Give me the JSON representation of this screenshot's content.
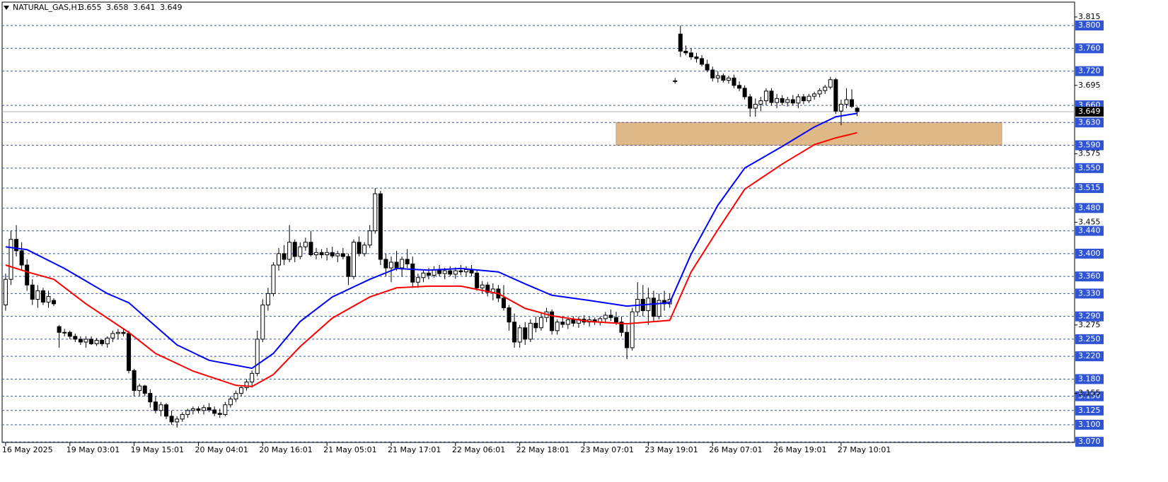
{
  "chart_data": {
    "type": "candlestick",
    "symbol": "NATURAL_GAS,H1",
    "quote": [
      3.655,
      3.658,
      3.641,
      3.649
    ],
    "ylim": [
      3.069,
      3.841
    ],
    "xlim": [
      -0.65,
      199.6
    ],
    "yticks": [
      {
        "value": 3.815,
        "label": "3.815"
      },
      {
        "value": 3.695,
        "label": "3.695"
      },
      {
        "value": 3.575,
        "label": "3.575"
      },
      {
        "value": 3.455,
        "label": "3.455"
      },
      {
        "value": 3.275,
        "label": "3.275"
      },
      {
        "value": 3.155,
        "label": "3.155"
      }
    ],
    "levels": [
      {
        "value": 3.8,
        "label": "3.800"
      },
      {
        "value": 3.76,
        "label": "3.760"
      },
      {
        "value": 3.72,
        "label": "3.720"
      },
      {
        "value": 3.66,
        "label": "3.660"
      },
      {
        "value": 3.63,
        "label": "3.630"
      },
      {
        "value": 3.59,
        "label": "3.590"
      },
      {
        "value": 3.55,
        "label": "3.550"
      },
      {
        "value": 3.515,
        "label": "3.515"
      },
      {
        "value": 3.48,
        "label": "3.480"
      },
      {
        "value": 3.44,
        "label": "3.440"
      },
      {
        "value": 3.4,
        "label": "3.400"
      },
      {
        "value": 3.36,
        "label": "3.360"
      },
      {
        "value": 3.33,
        "label": "3.330"
      },
      {
        "value": 3.29,
        "label": "3.290"
      },
      {
        "value": 3.25,
        "label": "3.250"
      },
      {
        "value": 3.22,
        "label": "3.220"
      },
      {
        "value": 3.18,
        "label": "3.180"
      },
      {
        "value": 3.15,
        "label": "3.150"
      },
      {
        "value": 3.125,
        "label": "3.125"
      },
      {
        "value": 3.1,
        "label": "3.100"
      },
      {
        "value": 3.07,
        "label": "3.070"
      }
    ],
    "level_color": "#2f55d4",
    "current_price": 3.649,
    "xticks": [
      {
        "value": 0,
        "label": "16 May 2025"
      },
      {
        "value": 12,
        "label": "19 May 03:01"
      },
      {
        "value": 24,
        "label": "19 May 15:01"
      },
      {
        "value": 36,
        "label": "20 May 04:01"
      },
      {
        "value": 48,
        "label": "20 May 16:01"
      },
      {
        "value": 60,
        "label": "21 May 05:01"
      },
      {
        "value": 72,
        "label": "21 May 17:01"
      },
      {
        "value": 84,
        "label": "22 May 06:01"
      },
      {
        "value": 96,
        "label": "22 May 18:01"
      },
      {
        "value": 108,
        "label": "23 May 07:01"
      },
      {
        "value": 120,
        "label": "23 May 19:01"
      },
      {
        "value": 132,
        "label": "26 May 07:01"
      },
      {
        "value": 144,
        "label": "26 May 19:01"
      },
      {
        "value": 156,
        "label": "27 May 10:01"
      }
    ],
    "zone": {
      "x": [
        114,
        186
      ],
      "y": [
        3.59,
        3.63
      ],
      "color": "#deb887"
    },
    "series": [
      {
        "color": "#0000ff",
        "x": [
          0,
          4,
          11,
          19,
          23,
          27,
          32,
          38,
          46,
          50,
          55,
          61,
          68,
          73,
          79,
          85,
          92,
          97,
          102,
          109,
          116,
          124,
          128,
          133,
          138,
          145,
          151,
          155,
          159
        ],
        "values": [
          3.412,
          3.407,
          3.374,
          3.33,
          3.314,
          3.281,
          3.24,
          3.213,
          3.199,
          3.225,
          3.281,
          3.324,
          3.355,
          3.374,
          3.371,
          3.374,
          3.368,
          3.347,
          3.327,
          3.318,
          3.308,
          3.314,
          3.399,
          3.485,
          3.55,
          3.588,
          3.622,
          3.64,
          3.646
        ]
      },
      {
        "color": "#ff0000",
        "x": [
          0,
          4,
          9,
          15,
          23,
          28,
          35,
          43,
          46,
          50,
          55,
          61,
          68,
          73,
          79,
          85,
          92,
          97,
          102,
          109,
          116,
          124,
          128,
          133,
          138,
          145,
          151,
          155,
          159
        ],
        "values": [
          3.38,
          3.368,
          3.355,
          3.312,
          3.262,
          3.225,
          3.194,
          3.169,
          3.167,
          3.188,
          3.237,
          3.287,
          3.324,
          3.34,
          3.343,
          3.343,
          3.33,
          3.304,
          3.291,
          3.281,
          3.277,
          3.283,
          3.368,
          3.442,
          3.513,
          3.557,
          3.591,
          3.603,
          3.612
        ]
      }
    ],
    "ohlc": [
      [
        3.31,
        3.365,
        3.3,
        3.355
      ],
      [
        3.355,
        3.44,
        3.345,
        3.425
      ],
      [
        3.425,
        3.45,
        3.395,
        3.405
      ],
      [
        3.405,
        3.42,
        3.37,
        3.38
      ],
      [
        3.38,
        3.39,
        3.335,
        3.345
      ],
      [
        3.345,
        3.355,
        3.31,
        3.32
      ],
      [
        3.32,
        3.345,
        3.305,
        3.335
      ],
      [
        3.335,
        3.34,
        3.31,
        3.315
      ],
      [
        3.315,
        3.335,
        3.305,
        3.325
      ],
      [
        3.318,
        3.322,
        3.308,
        3.312
      ],
      [
        3.272,
        3.275,
        3.235,
        3.262
      ],
      [
        3.262,
        3.268,
        3.255,
        3.262
      ],
      [
        3.262,
        3.265,
        3.25,
        3.255
      ],
      [
        3.255,
        3.26,
        3.245,
        3.25
      ],
      [
        3.25,
        3.255,
        3.24,
        3.245
      ],
      [
        3.245,
        3.255,
        3.235,
        3.25
      ],
      [
        3.25,
        3.255,
        3.24,
        3.242
      ],
      [
        3.242,
        3.252,
        3.238,
        3.248
      ],
      [
        3.248,
        3.25,
        3.238,
        3.242
      ],
      [
        3.242,
        3.255,
        3.235,
        3.252
      ],
      [
        3.252,
        3.265,
        3.245,
        3.26
      ],
      [
        3.26,
        3.268,
        3.25,
        3.262
      ],
      [
        3.262,
        3.268,
        3.255,
        3.26
      ],
      [
        3.26,
        3.265,
        3.19,
        3.195
      ],
      [
        3.195,
        3.198,
        3.15,
        3.16
      ],
      [
        3.16,
        3.172,
        3.15,
        3.168
      ],
      [
        3.168,
        3.17,
        3.15,
        3.155
      ],
      [
        3.155,
        3.162,
        3.13,
        3.14
      ],
      [
        3.14,
        3.15,
        3.12,
        3.125
      ],
      [
        3.125,
        3.14,
        3.115,
        3.135
      ],
      [
        3.135,
        3.138,
        3.11,
        3.115
      ],
      [
        3.115,
        3.125,
        3.1,
        3.105
      ],
      [
        3.105,
        3.115,
        3.095,
        3.11
      ],
      [
        3.11,
        3.122,
        3.105,
        3.118
      ],
      [
        3.118,
        3.128,
        3.112,
        3.125
      ],
      [
        3.125,
        3.132,
        3.118,
        3.128
      ],
      [
        3.128,
        3.132,
        3.12,
        3.125
      ],
      [
        3.125,
        3.135,
        3.118,
        3.13
      ],
      [
        3.13,
        3.138,
        3.122,
        3.126
      ],
      [
        3.126,
        3.132,
        3.115,
        3.12
      ],
      [
        3.12,
        3.128,
        3.112,
        3.118
      ],
      [
        3.118,
        3.14,
        3.115,
        3.135
      ],
      [
        3.135,
        3.15,
        3.13,
        3.145
      ],
      [
        3.145,
        3.16,
        3.14,
        3.155
      ],
      [
        3.155,
        3.168,
        3.15,
        3.165
      ],
      [
        3.165,
        3.18,
        3.16,
        3.175
      ],
      [
        3.175,
        3.195,
        3.165,
        3.19
      ],
      [
        3.19,
        3.265,
        3.185,
        3.25
      ],
      [
        3.25,
        3.32,
        3.245,
        3.31
      ],
      [
        3.31,
        3.34,
        3.3,
        3.33
      ],
      [
        3.33,
        3.385,
        3.325,
        3.38
      ],
      [
        3.38,
        3.41,
        3.37,
        3.4
      ],
      [
        3.4,
        3.415,
        3.38,
        3.39
      ],
      [
        3.39,
        3.45,
        3.385,
        3.42
      ],
      [
        3.42,
        3.425,
        3.385,
        3.395
      ],
      [
        3.395,
        3.42,
        3.39,
        3.412
      ],
      [
        3.412,
        3.428,
        3.405,
        3.42
      ],
      [
        3.42,
        3.44,
        3.395,
        3.398
      ],
      [
        3.398,
        3.41,
        3.39,
        3.402
      ],
      [
        3.402,
        3.408,
        3.392,
        3.398
      ],
      [
        3.398,
        3.41,
        3.388,
        3.402
      ],
      [
        3.402,
        3.412,
        3.392,
        3.396
      ],
      [
        3.396,
        3.405,
        3.385,
        3.4
      ],
      [
        3.4,
        3.41,
        3.39,
        3.395
      ],
      [
        3.395,
        3.4,
        3.345,
        3.36
      ],
      [
        3.36,
        3.425,
        3.355,
        3.42
      ],
      [
        3.42,
        3.43,
        3.395,
        3.4
      ],
      [
        3.4,
        3.42,
        3.395,
        3.415
      ],
      [
        3.415,
        3.45,
        3.41,
        3.44
      ],
      [
        3.44,
        3.515,
        3.435,
        3.505
      ],
      [
        3.505,
        3.51,
        3.38,
        3.39
      ],
      [
        3.39,
        3.4,
        3.36,
        3.375
      ],
      [
        3.375,
        3.395,
        3.35,
        3.385
      ],
      [
        3.385,
        3.405,
        3.37,
        3.375
      ],
      [
        3.375,
        3.395,
        3.36,
        3.39
      ],
      [
        3.39,
        3.408,
        3.375,
        3.382
      ],
      [
        3.382,
        3.395,
        3.34,
        3.35
      ],
      [
        3.35,
        3.365,
        3.34,
        3.358
      ],
      [
        3.358,
        3.372,
        3.35,
        3.366
      ],
      [
        3.366,
        3.375,
        3.355,
        3.362
      ],
      [
        3.362,
        3.378,
        3.358,
        3.372
      ],
      [
        3.372,
        3.38,
        3.36,
        3.365
      ],
      [
        3.365,
        3.375,
        3.355,
        3.37
      ],
      [
        3.37,
        3.378,
        3.36,
        3.364
      ],
      [
        3.364,
        3.376,
        3.356,
        3.37
      ],
      [
        3.37,
        3.38,
        3.362,
        3.368
      ],
      [
        3.368,
        3.378,
        3.36,
        3.372
      ],
      [
        3.372,
        3.38,
        3.36,
        3.366
      ],
      [
        3.366,
        3.372,
        3.335,
        3.34
      ],
      [
        3.34,
        3.352,
        3.33,
        3.345
      ],
      [
        3.345,
        3.35,
        3.325,
        3.332
      ],
      [
        3.332,
        3.348,
        3.318,
        3.338
      ],
      [
        3.338,
        3.345,
        3.315,
        3.322
      ],
      [
        3.322,
        3.345,
        3.3,
        3.305
      ],
      [
        3.305,
        3.31,
        3.265,
        3.28
      ],
      [
        3.28,
        3.295,
        3.235,
        3.245
      ],
      [
        3.245,
        3.275,
        3.235,
        3.27
      ],
      [
        3.27,
        3.28,
        3.24,
        3.25
      ],
      [
        3.25,
        3.285,
        3.245,
        3.278
      ],
      [
        3.278,
        3.29,
        3.262,
        3.27
      ],
      [
        3.27,
        3.295,
        3.265,
        3.288
      ],
      [
        3.288,
        3.305,
        3.28,
        3.298
      ],
      [
        3.298,
        3.302,
        3.258,
        3.265
      ],
      [
        3.265,
        3.285,
        3.258,
        3.28
      ],
      [
        3.28,
        3.29,
        3.27,
        3.276
      ],
      [
        3.276,
        3.288,
        3.268,
        3.284
      ],
      [
        3.284,
        3.29,
        3.272,
        3.278
      ],
      [
        3.278,
        3.29,
        3.27,
        3.285
      ],
      [
        3.285,
        3.292,
        3.275,
        3.28
      ],
      [
        3.28,
        3.29,
        3.272,
        3.284
      ],
      [
        3.284,
        3.288,
        3.275,
        3.28
      ],
      [
        3.28,
        3.29,
        3.274,
        3.286
      ],
      [
        3.286,
        3.298,
        3.278,
        3.292
      ],
      [
        3.292,
        3.302,
        3.282,
        3.288
      ],
      [
        3.288,
        3.298,
        3.275,
        3.28
      ],
      [
        3.28,
        3.29,
        3.255,
        3.262
      ],
      [
        3.262,
        3.275,
        3.215,
        3.235
      ],
      [
        3.235,
        3.305,
        3.23,
        3.298
      ],
      [
        3.298,
        3.35,
        3.29,
        3.32
      ],
      [
        3.32,
        3.345,
        3.29,
        3.3
      ],
      [
        3.3,
        3.34,
        3.275,
        3.322
      ],
      [
        3.322,
        3.335,
        3.28,
        3.29
      ],
      [
        3.29,
        3.33,
        3.285,
        3.318
      ],
      [
        3.318,
        3.335,
        3.3,
        3.312
      ],
      [
        3.312,
        3.33,
        3.305,
        3.32
      ],
      [
        3.703,
        3.708,
        3.698,
        3.702
      ],
      [
        3.785,
        3.8,
        3.745,
        3.755
      ],
      [
        3.755,
        3.765,
        3.748,
        3.752
      ],
      [
        3.752,
        3.76,
        3.74,
        3.745
      ],
      [
        3.745,
        3.752,
        3.735,
        3.742
      ],
      [
        3.742,
        3.748,
        3.728,
        3.732
      ],
      [
        3.732,
        3.74,
        3.718,
        3.722
      ],
      [
        3.722,
        3.728,
        3.702,
        3.708
      ],
      [
        3.708,
        3.72,
        3.7,
        3.712
      ],
      [
        3.712,
        3.716,
        3.7,
        3.704
      ],
      [
        3.704,
        3.712,
        3.698,
        3.708
      ],
      [
        3.708,
        3.714,
        3.69,
        3.695
      ],
      [
        3.695,
        3.702,
        3.685,
        3.69
      ],
      [
        3.69,
        3.695,
        3.67,
        3.675
      ],
      [
        3.675,
        3.68,
        3.64,
        3.655
      ],
      [
        3.655,
        3.672,
        3.64,
        3.662
      ],
      [
        3.662,
        3.675,
        3.65,
        3.668
      ],
      [
        3.668,
        3.69,
        3.66,
        3.685
      ],
      [
        3.685,
        3.69,
        3.66,
        3.665
      ],
      [
        3.665,
        3.68,
        3.655,
        3.672
      ],
      [
        3.672,
        3.678,
        3.66,
        3.665
      ],
      [
        3.665,
        3.675,
        3.658,
        3.67
      ],
      [
        3.67,
        3.678,
        3.66,
        3.664
      ],
      [
        3.664,
        3.68,
        3.655,
        3.675
      ],
      [
        3.675,
        3.68,
        3.662,
        3.668
      ],
      [
        3.668,
        3.68,
        3.664,
        3.676
      ],
      [
        3.676,
        3.684,
        3.67,
        3.68
      ],
      [
        3.68,
        3.69,
        3.674,
        3.686
      ],
      [
        3.686,
        3.696,
        3.68,
        3.692
      ],
      [
        3.692,
        3.71,
        3.688,
        3.705
      ],
      [
        3.705,
        3.708,
        3.645,
        3.65
      ],
      [
        3.65,
        3.67,
        3.625,
        3.662
      ],
      [
        3.662,
        3.69,
        3.655,
        3.67
      ],
      [
        3.67,
        3.688,
        3.655,
        3.658
      ],
      [
        3.655,
        3.658,
        3.641,
        3.649
      ]
    ]
  }
}
